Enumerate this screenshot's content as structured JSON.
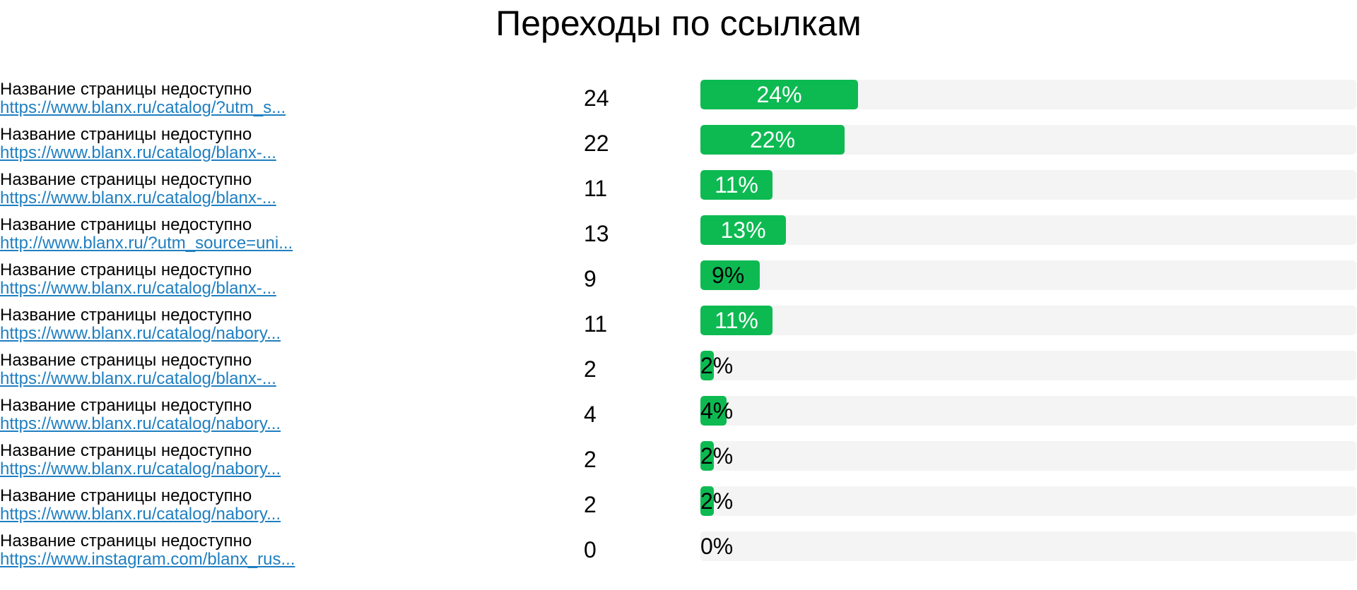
{
  "title": "Переходы по ссылкам",
  "colors": {
    "bar_fill": "#0dba52",
    "bar_track": "#f4f4f4",
    "link": "#1f7fc1",
    "label_on_bar": "#ffffff",
    "label_off_bar": "#000000"
  },
  "chart_data": {
    "type": "bar",
    "orientation": "horizontal",
    "title": "Переходы по ссылкам",
    "xlim": [
      0,
      100
    ],
    "rows": [
      {
        "name": "Название страницы недоступно",
        "url": "https://www.blanx.ru/catalog/?utm_s...",
        "count": "24",
        "percent": 24,
        "percent_label": "24%"
      },
      {
        "name": "Название страницы недоступно",
        "url": "https://www.blanx.ru/catalog/blanx-...",
        "count": "22",
        "percent": 22,
        "percent_label": "22%"
      },
      {
        "name": "Название страницы недоступно",
        "url": "https://www.blanx.ru/catalog/blanx-...",
        "count": "11",
        "percent": 11,
        "percent_label": "11%"
      },
      {
        "name": "Название страницы недоступно",
        "url": "http://www.blanx.ru/?utm_source=uni...",
        "count": "13",
        "percent": 13,
        "percent_label": "13%"
      },
      {
        "name": "Название страницы недоступно",
        "url": "https://www.blanx.ru/catalog/blanx-...",
        "count": "9",
        "percent": 9,
        "percent_label": "9%"
      },
      {
        "name": "Название страницы недоступно",
        "url": "https://www.blanx.ru/catalog/nabory...",
        "count": "11",
        "percent": 11,
        "percent_label": "11%"
      },
      {
        "name": "Название страницы недоступно",
        "url": "https://www.blanx.ru/catalog/blanx-...",
        "count": "2",
        "percent": 2,
        "percent_label": "2%"
      },
      {
        "name": "Название страницы недоступно",
        "url": "https://www.blanx.ru/catalog/nabory...",
        "count": "4",
        "percent": 4,
        "percent_label": "4%"
      },
      {
        "name": "Название страницы недоступно",
        "url": "https://www.blanx.ru/catalog/nabory...",
        "count": "2",
        "percent": 2,
        "percent_label": "2%"
      },
      {
        "name": "Название страницы недоступно",
        "url": "https://www.blanx.ru/catalog/nabory...",
        "count": "2",
        "percent": 2,
        "percent_label": "2%"
      },
      {
        "name": "Название страницы недоступно",
        "url": "https://www.instagram.com/blanx_rus...",
        "count": "0",
        "percent": 0,
        "percent_label": "0%"
      }
    ]
  }
}
